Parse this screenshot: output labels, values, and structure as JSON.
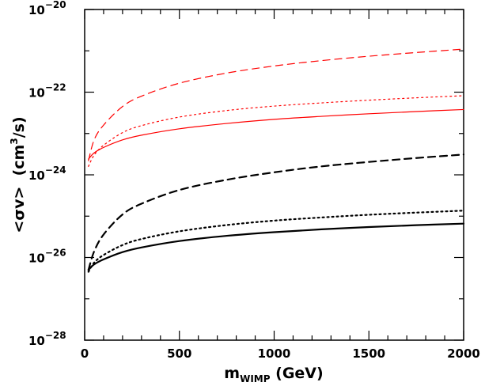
{
  "chart_data": {
    "type": "line",
    "x_scale": "linear",
    "y_scale": "log",
    "xlim": [
      0,
      2000
    ],
    "ylim": [
      1e-28,
      1e-20
    ],
    "x_ticks": [
      0,
      500,
      1000,
      1500,
      2000
    ],
    "x_tick_labels": [
      "0",
      "500",
      "1000",
      "1500",
      "2000"
    ],
    "y_ticks": [
      1e-28,
      1e-26,
      1e-24,
      1e-22,
      1e-20
    ],
    "y_tick_labels": [
      {
        "base": "10",
        "exp": "−28"
      },
      {
        "base": "10",
        "exp": "−26"
      },
      {
        "base": "10",
        "exp": "−24"
      },
      {
        "base": "10",
        "exp": "−22"
      },
      {
        "base": "10",
        "exp": "−20"
      }
    ],
    "xlabel": {
      "main": "m",
      "sub": "WIMP",
      "rest": " (GeV)"
    },
    "ylabel": {
      "pre": "<σv>  (cm",
      "sup": "3",
      "post": "/s)"
    },
    "grid": false,
    "series": [
      {
        "color": "#ff0000",
        "style": "dashed",
        "x": [
          20,
          50,
          100,
          200,
          300,
          500,
          750,
          1000,
          1250,
          1500,
          1750,
          2000
        ],
        "y": [
          2.2e-24,
          7e-24,
          1.6e-23,
          4.5e-23,
          8e-23,
          1.65e-22,
          2.9e-22,
          4.3e-22,
          5.8e-22,
          7.4e-22,
          9.1e-22,
          1.1e-21
        ]
      },
      {
        "color": "#ff0000",
        "style": "dotted",
        "x": [
          20,
          50,
          100,
          200,
          300,
          500,
          750,
          1000,
          1250,
          1500,
          1750,
          2000
        ],
        "y": [
          1.6e-24,
          3e-24,
          5.2e-24,
          1.05e-23,
          1.55e-23,
          2.5e-23,
          3.6e-23,
          4.6e-23,
          5.5e-23,
          6.4e-23,
          7.3e-23,
          8.2e-23
        ]
      },
      {
        "color": "#ff0000",
        "style": "solid",
        "x": [
          20,
          50,
          100,
          200,
          300,
          500,
          750,
          1000,
          1250,
          1500,
          1750,
          2000
        ],
        "y": [
          2.4e-24,
          3.4e-24,
          4.6e-24,
          7e-24,
          9.1e-24,
          1.3e-23,
          1.75e-23,
          2.2e-23,
          2.6e-23,
          3e-23,
          3.4e-23,
          3.8e-23
        ]
      },
      {
        "color": "#000000",
        "style": "dashed",
        "x": [
          20,
          50,
          100,
          200,
          300,
          500,
          750,
          1000,
          1250,
          1500,
          1750,
          2000
        ],
        "y": [
          5e-27,
          1.4e-26,
          3.6e-26,
          1.1e-25,
          2e-25,
          4.3e-25,
          7.6e-25,
          1.15e-24,
          1.6e-24,
          2.05e-24,
          2.55e-24,
          3.1e-24
        ]
      },
      {
        "color": "#000000",
        "style": "dotted",
        "x": [
          20,
          50,
          100,
          200,
          300,
          500,
          750,
          1000,
          1250,
          1500,
          1750,
          2000
        ],
        "y": [
          4.5e-27,
          7.5e-27,
          1.15e-26,
          2e-26,
          2.8e-26,
          4.3e-26,
          6.1e-26,
          7.8e-26,
          9.3e-26,
          1.08e-25,
          1.22e-25,
          1.36e-25
        ]
      },
      {
        "color": "#000000",
        "style": "solid",
        "x": [
          20,
          50,
          100,
          200,
          300,
          500,
          750,
          1000,
          1250,
          1500,
          1750,
          2000
        ],
        "y": [
          5e-27,
          6.8e-27,
          9e-27,
          1.35e-26,
          1.75e-26,
          2.5e-26,
          3.35e-26,
          4.1e-26,
          4.8e-26,
          5.45e-26,
          6.05e-26,
          6.6e-26
        ]
      }
    ]
  }
}
